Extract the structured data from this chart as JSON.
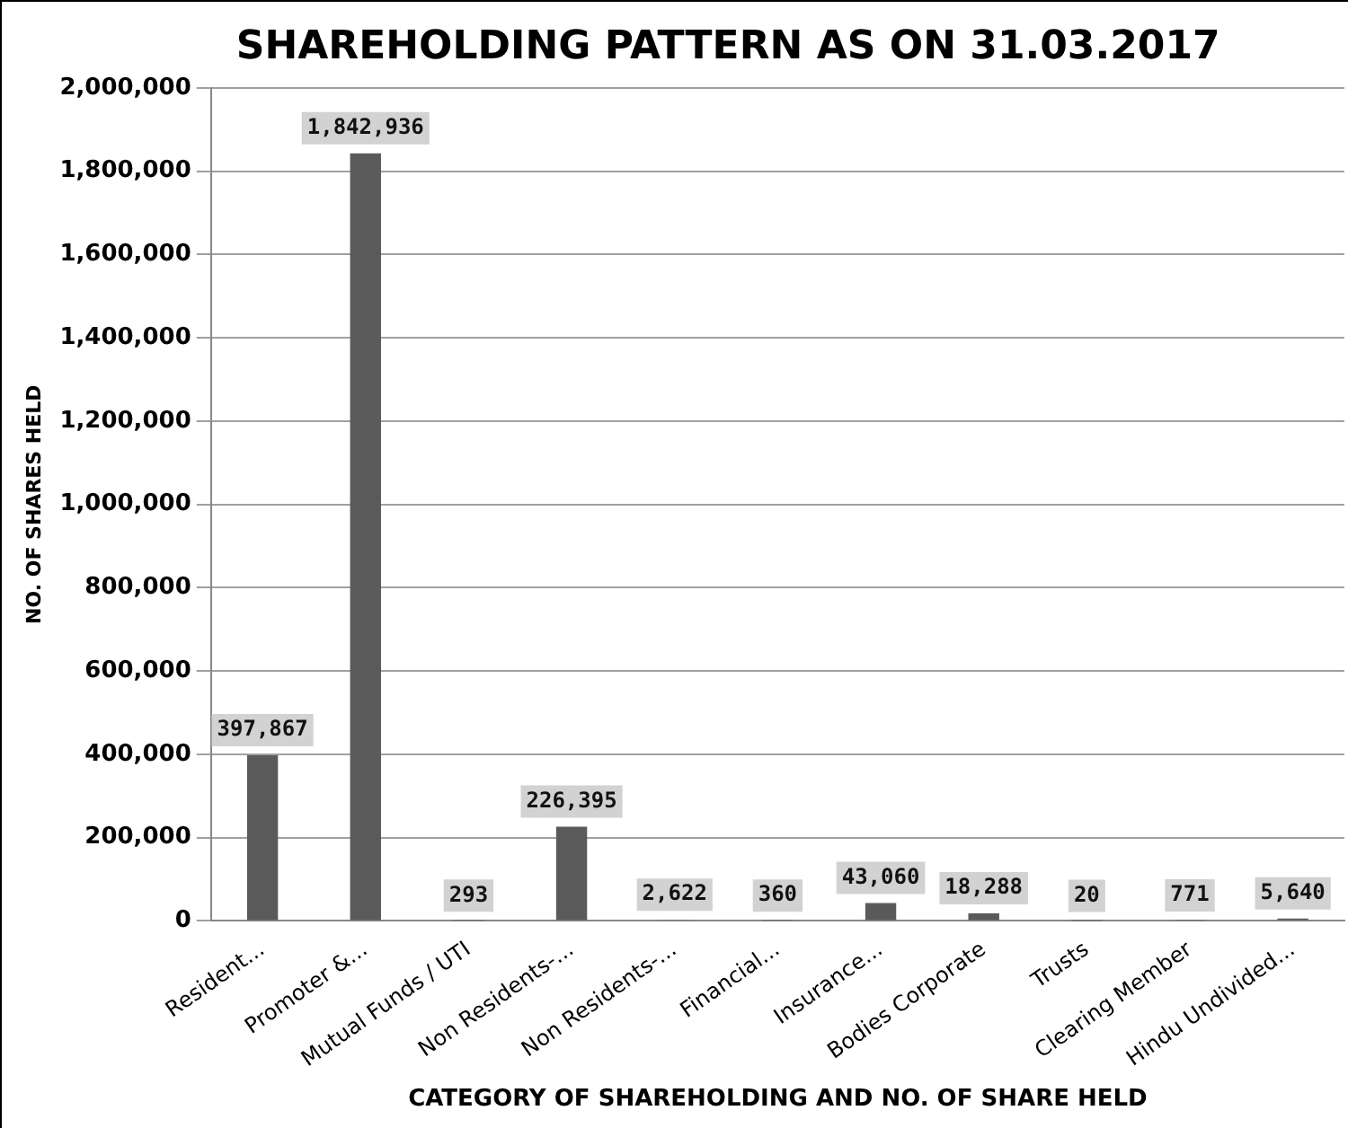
{
  "chart_data": {
    "type": "bar",
    "title": "SHAREHOLDING PATTERN AS ON 31.03.2017",
    "xlabel": "CATEGORY OF SHAREHOLDING AND NO. OF SHARE HELD",
    "ylabel": "NO. OF SHARES HELD",
    "categories": [
      "Resident...",
      "Promoter &...",
      "Mutual Funds / UTI",
      "Non Residents-...",
      "Non Residents-...",
      "Financial...",
      "Insurance...",
      "Bodies Corporate",
      "Trusts",
      "Clearing Member",
      "Hindu Undivided..."
    ],
    "values": [
      397867,
      1842936,
      293,
      226395,
      2622,
      360,
      43060,
      18288,
      20,
      771,
      5640
    ],
    "value_labels": [
      "397,867",
      "1,842,936",
      "293",
      "226,395",
      "2,622",
      "360",
      "43,060",
      "18,288",
      "20",
      "771",
      "5,640"
    ],
    "color": "#5a5a5a",
    "ylim": [
      0,
      2000000
    ],
    "yticks": [
      {
        "value": 0,
        "label": "0"
      },
      {
        "value": 200000,
        "label": "200,000"
      },
      {
        "value": 400000,
        "label": "400,000"
      },
      {
        "value": 600000,
        "label": "600,000"
      },
      {
        "value": 800000,
        "label": "800,000"
      },
      {
        "value": 1000000,
        "label": "1,000,000"
      },
      {
        "value": 1200000,
        "label": "1,200,000"
      },
      {
        "value": 1400000,
        "label": "1,400,000"
      },
      {
        "value": 1600000,
        "label": "1,600,000"
      },
      {
        "value": 1800000,
        "label": "1,800,000"
      },
      {
        "value": 2000000,
        "label": "2,000,000"
      }
    ],
    "grid": "y",
    "legend": false
  }
}
